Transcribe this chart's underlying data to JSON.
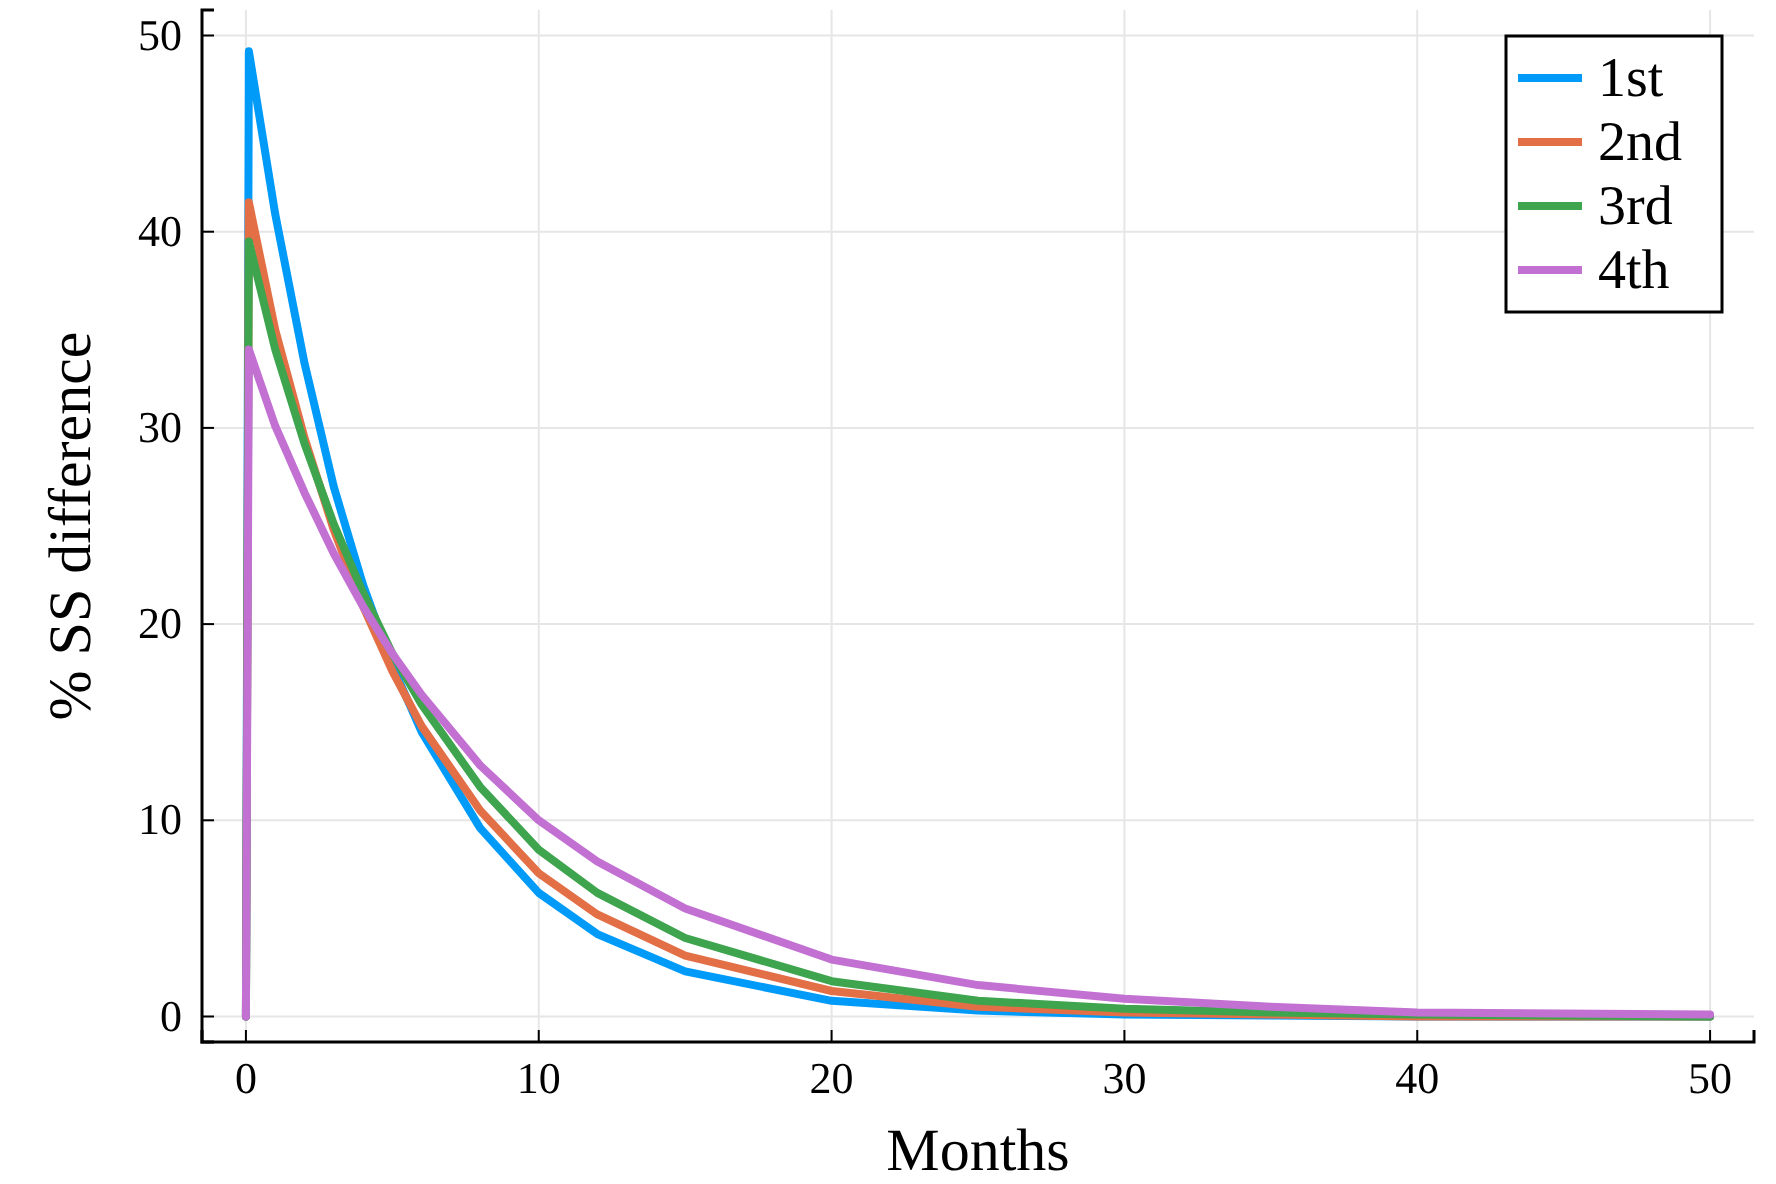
{
  "chart_data": {
    "type": "line",
    "xlabel": "Months",
    "ylabel": "% SS difference",
    "x": [
      0,
      0.1,
      1,
      2,
      3,
      4,
      5,
      6,
      8,
      10,
      12,
      15,
      20,
      25,
      30,
      35,
      40,
      50
    ],
    "series": [
      {
        "name": "1st",
        "color": "#009af9",
        "values": [
          0,
          49.2,
          40.9,
          33.3,
          27.0,
          22.0,
          17.9,
          14.5,
          9.6,
          6.3,
          4.2,
          2.3,
          0.8,
          0.3,
          0.1,
          0.05,
          0,
          0
        ]
      },
      {
        "name": "2nd",
        "color": "#e26f46",
        "values": [
          0,
          41.5,
          35.0,
          29.5,
          24.8,
          20.9,
          17.6,
          14.8,
          10.5,
          7.3,
          5.2,
          3.1,
          1.3,
          0.5,
          0.2,
          0.1,
          0,
          0
        ]
      },
      {
        "name": "3rd",
        "color": "#3ea44e",
        "values": [
          0,
          39.5,
          34.0,
          29.2,
          25.1,
          21.6,
          18.5,
          15.9,
          11.7,
          8.5,
          6.3,
          4.0,
          1.8,
          0.8,
          0.4,
          0.2,
          0.1,
          0
        ]
      },
      {
        "name": "4th",
        "color": "#c271d2",
        "values": [
          0,
          34.0,
          30.1,
          26.7,
          23.6,
          20.9,
          18.5,
          16.4,
          12.8,
          10.0,
          7.9,
          5.5,
          2.9,
          1.6,
          0.9,
          0.5,
          0.2,
          0.1
        ]
      }
    ],
    "xlim": [
      -1.5,
      51.5
    ],
    "xticks": [
      0,
      10,
      20,
      30,
      40,
      50
    ],
    "ylim": [
      -1.3,
      51.3
    ],
    "yticks": [
      0,
      10,
      20,
      30,
      40,
      50
    ],
    "grid": true,
    "legend": "top right",
    "line_style": "solid"
  }
}
